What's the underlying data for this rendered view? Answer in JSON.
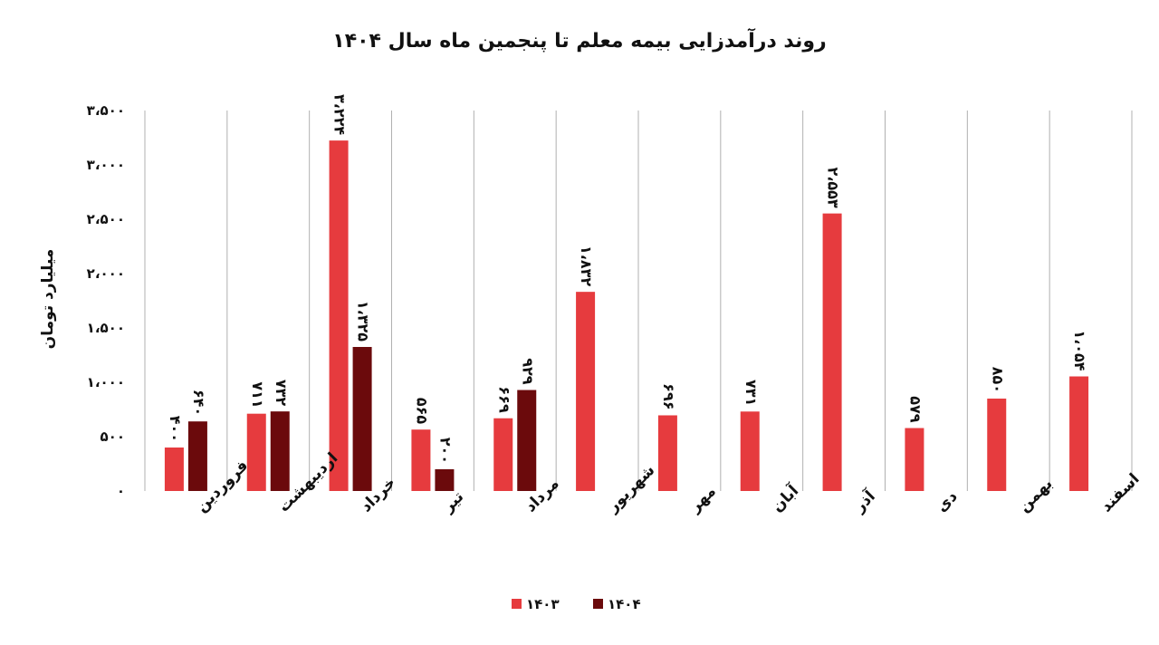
{
  "chart_data": {
    "type": "bar",
    "title": "روند درآمدزایی بیمه معلم تا پنجمین ماه سال ۱۴۰۴",
    "ylabel": "میلیارد تومان",
    "xlabel": "",
    "ylim": [
      0,
      3500
    ],
    "yticks": [
      {
        "value": 0,
        "label": "۰"
      },
      {
        "value": 500,
        "label": "۵۰۰"
      },
      {
        "value": 1000,
        "label": "۱،۰۰۰"
      },
      {
        "value": 1500,
        "label": "۱،۵۰۰"
      },
      {
        "value": 2000,
        "label": "۲،۰۰۰"
      },
      {
        "value": 2500,
        "label": "۲،۵۰۰"
      },
      {
        "value": 3000,
        "label": "۳،۰۰۰"
      },
      {
        "value": 3500,
        "label": "۳،۵۰۰"
      }
    ],
    "categories": [
      "فروردین",
      "اردیبهشت",
      "خرداد",
      "تیر",
      "مرداد",
      "شهریور",
      "مهر",
      "آبان",
      "آذر",
      "دی",
      "بهمن",
      "اسفند"
    ],
    "series": [
      {
        "name": "۱۴۰۳",
        "color": "#e63b3e",
        "values": [
          400,
          711,
          3224,
          565,
          669,
          1832,
          696,
          731,
          2553,
          579,
          850,
          1054
        ],
        "labels": [
          "۴۰۰",
          "۷۱۱",
          "۳،۲۲۴",
          "۵۶۵",
          "۶۶۹",
          "۱،۸۳۲",
          "۶۹۶",
          "۷۳۱",
          "۲،۵۵۳",
          "۵۷۹",
          "۸۵۰",
          "۱،۰۵۴"
        ]
      },
      {
        "name": "۱۴۰۴",
        "color": "#6b0a0c",
        "values": [
          640,
          732,
          1325,
          200,
          929,
          null,
          null,
          null,
          null,
          null,
          null,
          null
        ],
        "labels": [
          "۶۴۰",
          "۷۳۲",
          "۱،۳۲۵",
          "۲۰۰",
          "۹۲۹",
          null,
          null,
          null,
          null,
          null,
          null,
          null
        ]
      }
    ],
    "grid": false,
    "category_separators": true,
    "legend": "bottom"
  }
}
